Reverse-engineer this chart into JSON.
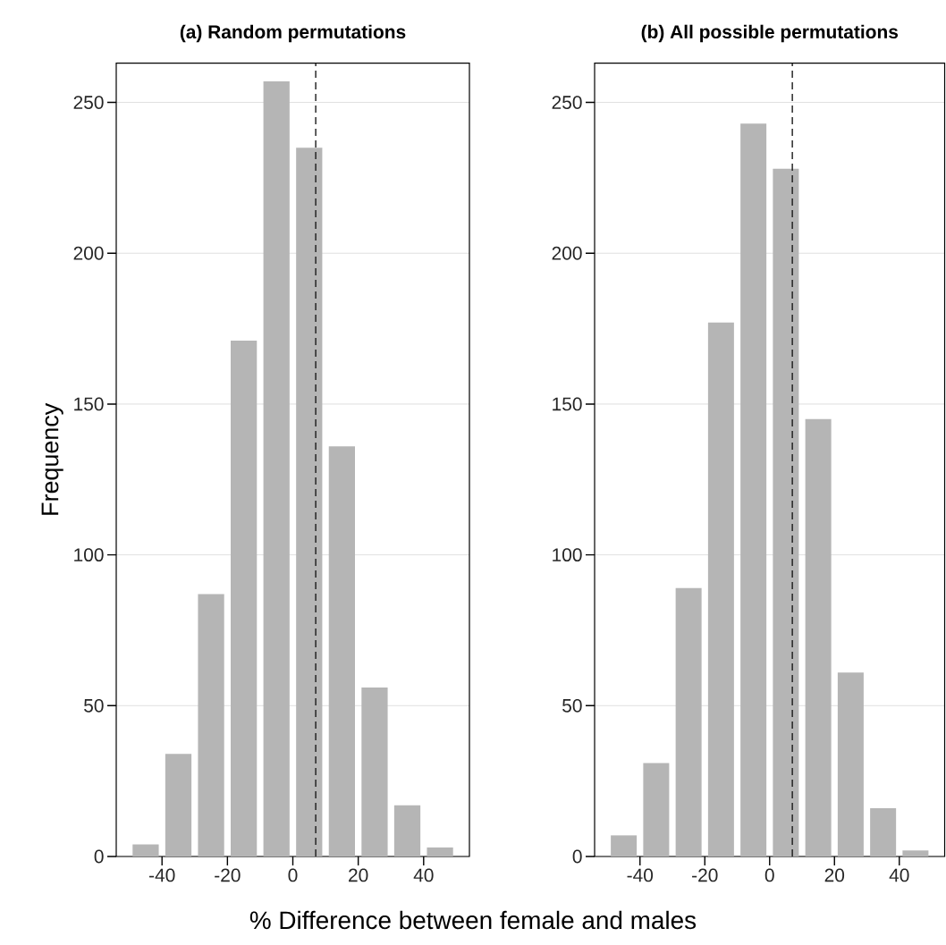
{
  "chart_data": [
    {
      "type": "histogram",
      "title": "(a) Random permutations",
      "ylabel": "Frequency",
      "xlabel": "% Difference between female and males",
      "bins": [
        -50,
        -40,
        -30,
        -20,
        -10,
        0,
        10,
        20,
        30,
        40,
        50
      ],
      "values": [
        4,
        34,
        87,
        171,
        257,
        235,
        136,
        56,
        17,
        3
      ],
      "color": "#b5b5b5",
      "xlim": [
        -54,
        54
      ],
      "ylim": [
        0,
        263
      ],
      "xticks": [
        -40,
        -20,
        0,
        20,
        40
      ],
      "yticks": [
        0,
        50,
        100,
        150,
        200,
        250
      ],
      "grid": "y",
      "ref_lines": [
        {
          "axis": "x",
          "value": 7,
          "color": "#1a1a1a",
          "line_style": "dashed"
        }
      ]
    },
    {
      "type": "histogram",
      "title": "(b) All possible permutations",
      "bins": [
        -50,
        -40,
        -30,
        -20,
        -10,
        0,
        10,
        20,
        30,
        40,
        50
      ],
      "values": [
        7,
        31,
        89,
        177,
        243,
        228,
        145,
        61,
        16,
        2
      ],
      "color": "#b5b5b5",
      "xlim": [
        -54,
        54
      ],
      "ylim": [
        0,
        263
      ],
      "xticks": [
        -40,
        -20,
        0,
        20,
        40
      ],
      "yticks": [
        0,
        50,
        100,
        150,
        200,
        250
      ],
      "grid": "y",
      "ref_lines": [
        {
          "axis": "x",
          "value": 7,
          "color": "#1a1a1a",
          "line_style": "dashed"
        }
      ]
    }
  ]
}
